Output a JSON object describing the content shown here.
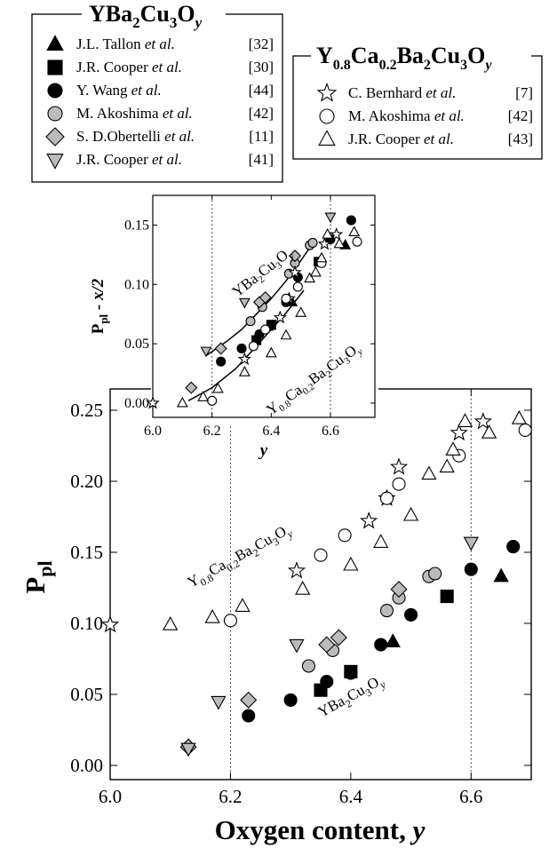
{
  "chart_data": [
    {
      "type": "scatter",
      "panel": "main",
      "xlabel": "Oxygen content, y",
      "ylabel": "P_pl",
      "xlim": [
        6.0,
        6.7
      ],
      "ylim": [
        -0.01,
        0.265
      ],
      "xticks": [
        "6.0",
        "6.2",
        "6.4",
        "6.6"
      ],
      "yticks": [
        "0.00",
        "0.05",
        "0.10",
        "0.15",
        "0.20",
        "0.25"
      ],
      "vlines": [
        6.2,
        6.6
      ],
      "annotations": [
        "Y0.8Ca0.2Ba2Cu3Oy",
        "YBa2Cu3Oy"
      ],
      "series": [
        {
          "name": "J.L. Tallon et al. [32]",
          "group": "YBa2Cu3Oy",
          "marker": "triangle-up",
          "fill": "#000000",
          "x": [
            6.47,
            6.65
          ],
          "y": [
            0.087,
            0.133
          ]
        },
        {
          "name": "J.R. Cooper et al. [30]",
          "group": "YBa2Cu3Oy",
          "marker": "square",
          "fill": "#000000",
          "x": [
            6.35,
            6.4,
            6.56
          ],
          "y": [
            0.053,
            0.066,
            0.119
          ]
        },
        {
          "name": "Y. Wang et al. [44]",
          "group": "YBa2Cu3Oy",
          "marker": "circle",
          "fill": "#000000",
          "x": [
            6.23,
            6.3,
            6.36,
            6.4,
            6.45,
            6.5,
            6.6,
            6.67
          ],
          "y": [
            0.035,
            0.046,
            0.059,
            0.065,
            0.085,
            0.106,
            0.138,
            0.154
          ]
        },
        {
          "name": "M. Akoshima et al. [42]",
          "group": "YBa2Cu3Oy",
          "marker": "circle",
          "fill": "#bbbbbb",
          "x": [
            6.33,
            6.37,
            6.46,
            6.48,
            6.53,
            6.54
          ],
          "y": [
            0.07,
            0.081,
            0.109,
            0.118,
            0.133,
            0.135
          ]
        },
        {
          "name": "S. D.Obertelli et al. [11]",
          "group": "YBa2Cu3Oy",
          "marker": "diamond",
          "fill": "#bbbbbb",
          "x": [
            6.13,
            6.23,
            6.36,
            6.38,
            6.48
          ],
          "y": [
            0.013,
            0.046,
            0.085,
            0.09,
            0.124
          ]
        },
        {
          "name": "J.R. Cooper et al. [41]",
          "group": "YBa2Cu3Oy",
          "marker": "triangle-down",
          "fill": "#bbbbbb",
          "x": [
            6.13,
            6.18,
            6.31,
            6.6
          ],
          "y": [
            0.012,
            0.045,
            0.085,
            0.157
          ]
        },
        {
          "name": "C. Bernhard et al. [7]",
          "group": "Y0.8Ca0.2Ba2Cu3Oy",
          "marker": "star",
          "fill": "#ffffff",
          "x": [
            6.0,
            6.31,
            6.43,
            6.46,
            6.48,
            6.58,
            6.62
          ],
          "y": [
            0.099,
            0.137,
            0.172,
            0.188,
            0.21,
            0.234,
            0.242
          ]
        },
        {
          "name": "M. Akoshima et al. [42]",
          "group": "Y0.8Ca0.2Ba2Cu3Oy",
          "marker": "circle",
          "fill": "#ffffff",
          "x": [
            6.2,
            6.35,
            6.39,
            6.46,
            6.48,
            6.58,
            6.69
          ],
          "y": [
            0.102,
            0.148,
            0.162,
            0.188,
            0.198,
            0.218,
            0.236
          ]
        },
        {
          "name": "J.R. Cooper et al. [43]",
          "group": "Y0.8Ca0.2Ba2Cu3Oy",
          "marker": "triangle-up",
          "fill": "#ffffff",
          "x": [
            6.1,
            6.17,
            6.22,
            6.32,
            6.4,
            6.45,
            6.5,
            6.53,
            6.56,
            6.57,
            6.59,
            6.63,
            6.68
          ],
          "y": [
            0.099,
            0.104,
            0.112,
            0.124,
            0.141,
            0.157,
            0.176,
            0.205,
            0.21,
            0.222,
            0.242,
            0.234,
            0.244
          ]
        }
      ]
    },
    {
      "type": "scatter",
      "panel": "inset",
      "xlabel": "y",
      "ylabel": "P_pl - x/2",
      "xlim": [
        6.0,
        6.75
      ],
      "ylim": [
        -0.012,
        0.175
      ],
      "xticks": [
        "6.0",
        "6.2",
        "6.4",
        "6.6"
      ],
      "yticks": [
        "0.00",
        "0.05",
        "0.10",
        "0.15"
      ],
      "vlines": [
        6.2,
        6.6
      ],
      "annotations": [
        "YBa2Cu3Oy",
        "Y0.8Ca0.2Ba2Cu3Oy"
      ],
      "curves": [
        {
          "x": [
            6.18,
            6.25,
            6.3,
            6.35,
            6.4,
            6.45,
            6.5,
            6.53
          ],
          "y": [
            0.04,
            0.052,
            0.062,
            0.075,
            0.088,
            0.103,
            0.12,
            0.131
          ]
        },
        {
          "x": [
            6.12,
            6.2,
            6.28,
            6.35,
            6.4,
            6.45,
            6.51
          ],
          "y": [
            0.002,
            0.013,
            0.029,
            0.048,
            0.062,
            0.076,
            0.095
          ]
        }
      ],
      "series": [
        {
          "name": "J.L. Tallon et al. [32]",
          "marker": "triangle-up",
          "fill": "#000000",
          "x": [
            6.47,
            6.65
          ],
          "y": [
            0.085,
            0.133
          ]
        },
        {
          "name": "J.R. Cooper et al. [30]",
          "marker": "square",
          "fill": "#000000",
          "x": [
            6.35,
            6.4,
            6.56
          ],
          "y": [
            0.053,
            0.066,
            0.119
          ]
        },
        {
          "name": "Y. Wang et al. [44]",
          "marker": "circle",
          "fill": "#000000",
          "x": [
            6.23,
            6.3,
            6.36,
            6.4,
            6.45,
            6.49,
            6.6,
            6.67
          ],
          "y": [
            0.035,
            0.046,
            0.058,
            0.065,
            0.085,
            0.106,
            0.138,
            0.154
          ]
        },
        {
          "name": "M. Akoshima et al. [42]",
          "marker": "circle",
          "fill": "#bbbbbb",
          "x": [
            6.33,
            6.37,
            6.46,
            6.48,
            6.53,
            6.54
          ],
          "y": [
            0.069,
            0.081,
            0.109,
            0.118,
            0.133,
            0.135
          ]
        },
        {
          "name": "S. D.Obertelli et al. [11]",
          "marker": "diamond",
          "fill": "#bbbbbb",
          "x": [
            6.13,
            6.23,
            6.36,
            6.38,
            6.48
          ],
          "y": [
            0.013,
            0.046,
            0.085,
            0.089,
            0.124
          ]
        },
        {
          "name": "J.R. Cooper et al. [41]",
          "marker": "triangle-down",
          "fill": "#bbbbbb",
          "x": [
            6.18,
            6.31,
            6.6
          ],
          "y": [
            0.044,
            0.085,
            0.157
          ]
        },
        {
          "name": "C. Bernhard et al. [7]",
          "marker": "star",
          "fill": "#ffffff",
          "x": [
            6.0,
            6.31,
            6.43,
            6.46,
            6.48,
            6.58,
            6.62
          ],
          "y": [
            0.0,
            0.037,
            0.072,
            0.088,
            0.11,
            0.134,
            0.142
          ]
        },
        {
          "name": "M. Akoshima et al. [42]",
          "marker": "circle",
          "fill": "#ffffff",
          "x": [
            6.2,
            6.34,
            6.38,
            6.45,
            6.49,
            6.57,
            6.69
          ],
          "y": [
            0.002,
            0.048,
            0.062,
            0.088,
            0.098,
            0.118,
            0.136
          ]
        },
        {
          "name": "J.R. Cooper et al. [43]",
          "marker": "triangle-up",
          "fill": "#ffffff",
          "x": [
            6.1,
            6.17,
            6.22,
            6.31,
            6.4,
            6.45,
            6.5,
            6.53,
            6.55,
            6.57,
            6.59,
            6.63,
            6.68
          ],
          "y": [
            0.0,
            0.005,
            0.012,
            0.026,
            0.042,
            0.057,
            0.076,
            0.105,
            0.11,
            0.122,
            0.142,
            0.134,
            0.144
          ]
        }
      ]
    }
  ],
  "legend_left": {
    "title_main": "YBa",
    "title_sub1": "2",
    "title_mid": "Cu",
    "title_sub2": "3",
    "title_o": "O",
    "title_suby": "y",
    "entries": [
      {
        "authors": "J.L. Tallon ",
        "etal": "et al.",
        "ref": "[32]"
      },
      {
        "authors": "J.R. Cooper ",
        "etal": "et al.",
        "ref": "[30]"
      },
      {
        "authors": "Y. Wang ",
        "etal": "et al.",
        "ref": "[44]"
      },
      {
        "authors": "M. Akoshima ",
        "etal": "et al.",
        "ref": "[42]"
      },
      {
        "authors": "S. D.Obertelli ",
        "etal": "et al.",
        "ref": "[11]"
      },
      {
        "authors": "J.R. Cooper ",
        "etal": "et al.",
        "ref": "[41]"
      }
    ]
  },
  "legend_right": {
    "title_y": "Y",
    "title_sub1": "0.8",
    "title_ca": "Ca",
    "title_sub2": "0.2",
    "title_ba": "Ba",
    "title_sub3": "2",
    "title_cu": "Cu",
    "title_sub4": "3",
    "title_o": "O",
    "title_suby": "y",
    "entries": [
      {
        "authors": "C. Bernhard ",
        "etal": "et al.",
        "ref": "[7]"
      },
      {
        "authors": "M. Akoshima ",
        "etal": "et al.",
        "ref": "[42]"
      },
      {
        "authors": "J.R. Cooper ",
        "etal": "et al.",
        "ref": "[43]"
      }
    ]
  },
  "labels": {
    "xlabel_main": "Oxygen content, ",
    "xlabel_var": "y",
    "ylabel_main": "P",
    "ylabel_sub": "pl",
    "inset_xlabel": "y",
    "inset_ylabel_p": "P",
    "inset_ylabel_sub": "pl",
    "inset_ylabel_rest": " - x/2",
    "ann_ca": {
      "y": "Y",
      "s1": "0.8",
      "ca": "Ca",
      "s2": "0.2",
      "ba": "Ba",
      "s3": "2",
      "cu": "Cu",
      "s4": "3",
      "o": "O",
      "sy": "y"
    },
    "ann_yb": {
      "yba": "YBa",
      "s1": "2",
      "cu": "Cu",
      "s2": "3",
      "o": "O",
      "sy": "y"
    }
  }
}
